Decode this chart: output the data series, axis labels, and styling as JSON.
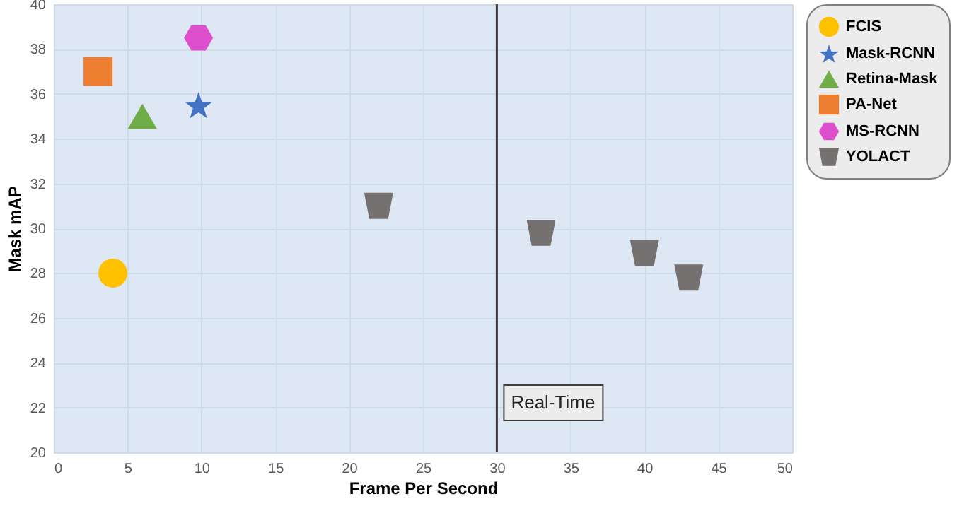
{
  "chart_data": {
    "type": "scatter",
    "xlabel": "Frame Per Second",
    "ylabel": "Mask mAP",
    "xlim": [
      0,
      50
    ],
    "xticks": [
      0,
      5,
      10,
      15,
      20,
      25,
      30,
      35,
      40,
      45,
      50
    ],
    "ylim": [
      20,
      40
    ],
    "yticks": [
      20,
      22,
      24,
      26,
      28,
      30,
      32,
      34,
      36,
      38,
      40
    ],
    "grid": true,
    "legend": "right",
    "ref_lines": [
      {
        "axis": "x",
        "value": 30,
        "label": "Real-Time",
        "color": "#404040"
      }
    ],
    "series": [
      {
        "name": "FCIS",
        "color": "#ffc000",
        "marker": "circle",
        "x": [
          4
        ],
        "values": [
          28
        ]
      },
      {
        "name": "Mask-RCNN",
        "color": "#4472c4",
        "marker": "star",
        "x": [
          9.8
        ],
        "values": [
          35.5
        ]
      },
      {
        "name": "Retina-Mask",
        "color": "#70ad47",
        "marker": "triangle",
        "x": [
          6
        ],
        "values": [
          35
        ]
      },
      {
        "name": "PA-Net",
        "color": "#ed7d31",
        "marker": "square",
        "x": [
          3
        ],
        "values": [
          37
        ]
      },
      {
        "name": "MS-RCNN",
        "color": "#dd4fcc",
        "x": [
          9.8
        ],
        "values": [
          38.5
        ]
      },
      {
        "name": "YOLACT",
        "color": "#767171",
        "x": [
          22,
          33,
          40,
          43
        ],
        "values": [
          31,
          29.8,
          28.9,
          27.8
        ]
      }
    ]
  }
}
